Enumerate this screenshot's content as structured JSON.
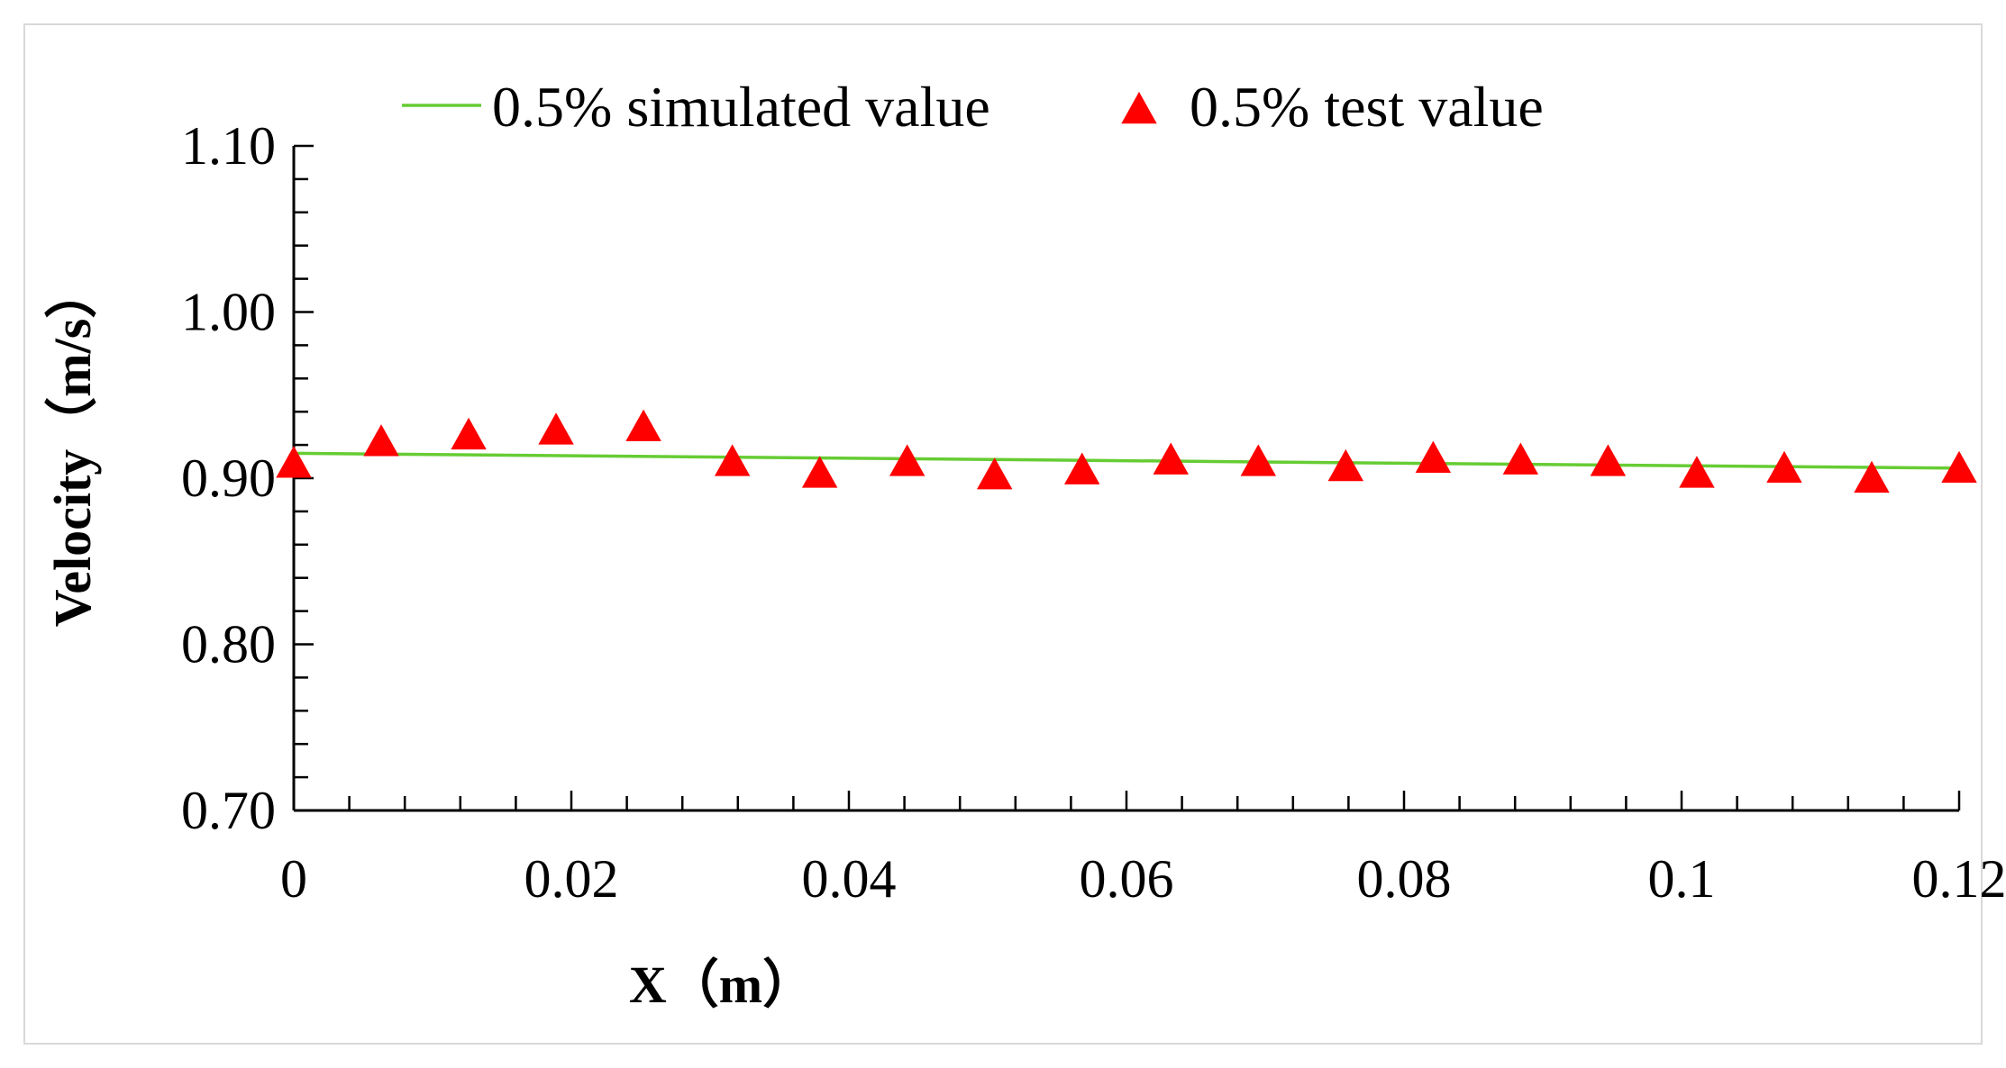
{
  "chart_data": {
    "type": "line",
    "title": "",
    "xlabel": "X（m）",
    "ylabel": "Velocity（m/s）",
    "xlim": [
      0,
      0.12
    ],
    "ylim": [
      0.7,
      1.1
    ],
    "x_ticks": [
      0,
      0.02,
      0.04,
      0.06,
      0.08,
      0.1,
      0.12
    ],
    "x_tick_labels": [
      "0",
      "0.02",
      "0.04",
      "0.06",
      "0.08",
      "0.1",
      "0.12"
    ],
    "y_ticks": [
      0.7,
      0.8,
      0.9,
      1.0,
      1.1
    ],
    "y_tick_labels": [
      "0.70",
      "0.80",
      "0.90",
      "1.00",
      "1.10"
    ],
    "x_minor_step": 0.004,
    "y_minor_step": 0.02,
    "grid": false,
    "legend_position": "top-center",
    "series": [
      {
        "name": "0.5% simulated value",
        "kind": "line",
        "color": "#66cc33",
        "x": [
          0,
          0.12
        ],
        "y": [
          0.915,
          0.906
        ]
      },
      {
        "name": "0.5% test value",
        "kind": "scatter",
        "marker": "triangle",
        "color": "#ff0000",
        "x": [
          0,
          0.0063,
          0.0126,
          0.0189,
          0.0252,
          0.0316,
          0.0379,
          0.0442,
          0.0505,
          0.0568,
          0.0632,
          0.0695,
          0.0758,
          0.0821,
          0.0884,
          0.0947,
          0.1011,
          0.1074,
          0.1137,
          0.12
        ],
        "y": [
          0.908,
          0.921,
          0.925,
          0.928,
          0.93,
          0.909,
          0.902,
          0.909,
          0.901,
          0.904,
          0.91,
          0.909,
          0.906,
          0.911,
          0.91,
          0.909,
          0.902,
          0.905,
          0.899,
          0.905
        ]
      }
    ]
  }
}
